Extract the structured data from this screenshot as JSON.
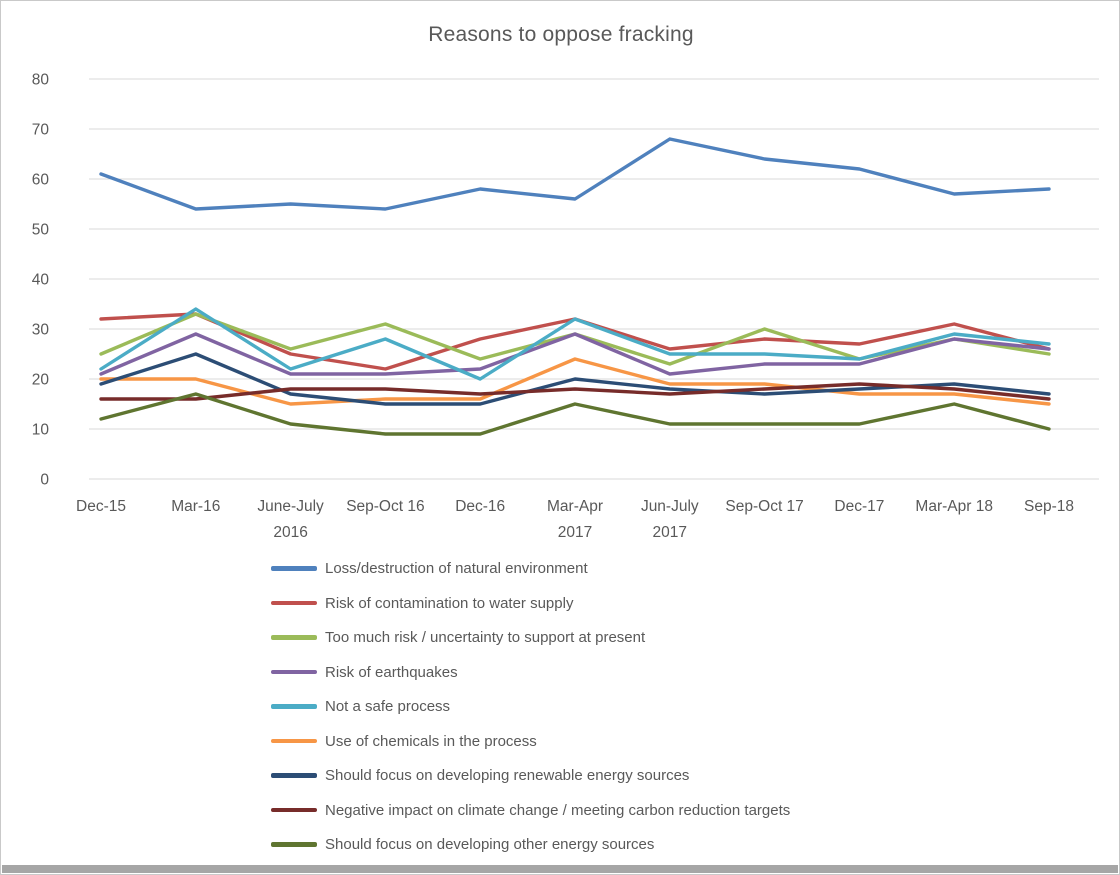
{
  "page": {
    "title": "Reasons to oppose fracking"
  },
  "colors": {
    "grid": "#D9D9D9",
    "axis_text": "#595959",
    "title_text": "#595959",
    "bottom_bar": "#A6A6A6"
  },
  "chart_data": {
    "type": "line",
    "title": "Reasons to oppose fracking",
    "categories": [
      "Dec-15",
      "Mar-16",
      "June-July\n2016",
      "Sep-Oct 16",
      "Dec-16",
      "Mar-Apr\n2017",
      "Jun-July\n2017",
      "Sep-Oct 17",
      "Dec-17",
      "Mar-Apr 18",
      "Sep-18"
    ],
    "ylim": [
      0,
      80
    ],
    "yticks": [
      0,
      10,
      20,
      30,
      40,
      50,
      60,
      70,
      80
    ],
    "grid": "horizontal",
    "legend_position": "bottom-left",
    "series": [
      {
        "name": "Loss/destruction of natural environment",
        "color": "#4F81BD",
        "values": [
          61,
          54,
          55,
          54,
          58,
          56,
          68,
          64,
          62,
          57,
          58
        ]
      },
      {
        "name": "Risk of contamination to water supply",
        "color": "#C0504D",
        "values": [
          32,
          33,
          25,
          22,
          28,
          32,
          26,
          28,
          27,
          31,
          26
        ]
      },
      {
        "name": "Too much risk / uncertainty to support at present",
        "color": "#9BBB59",
        "values": [
          25,
          33,
          26,
          31,
          24,
          29,
          23,
          30,
          24,
          28,
          25
        ]
      },
      {
        "name": "Risk of earthquakes",
        "color": "#8064A2",
        "values": [
          21,
          29,
          21,
          21,
          22,
          29,
          21,
          23,
          23,
          28,
          26
        ]
      },
      {
        "name": "Not a safe process",
        "color": "#4BACC6",
        "values": [
          22,
          34,
          22,
          28,
          20,
          32,
          25,
          25,
          24,
          29,
          27
        ]
      },
      {
        "name": "Use of chemicals in the process",
        "color": "#F79646",
        "values": [
          20,
          20,
          15,
          16,
          16,
          24,
          19,
          19,
          17,
          17,
          15
        ]
      },
      {
        "name": "Should focus on developing renewable energy sources",
        "color": "#2C4D75",
        "values": [
          19,
          25,
          17,
          15,
          15,
          20,
          18,
          17,
          18,
          19,
          17
        ]
      },
      {
        "name": "Negative impact on climate change / meeting carbon reduction targets",
        "color": "#772C2A",
        "values": [
          16,
          16,
          18,
          18,
          17,
          18,
          17,
          18,
          19,
          18,
          16
        ]
      },
      {
        "name": "Should focus on developing other energy sources",
        "color": "#5F7530",
        "values": [
          12,
          17,
          11,
          9,
          9,
          15,
          11,
          11,
          11,
          15,
          10
        ]
      }
    ]
  }
}
